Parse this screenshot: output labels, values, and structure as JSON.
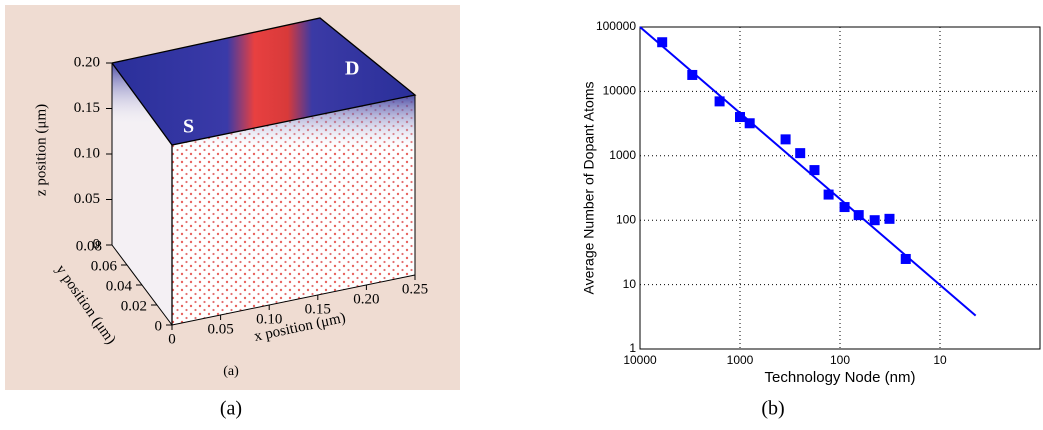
{
  "chart_data": [
    {
      "type": "scatter3d",
      "panel_label": "(a)",
      "caption": "(a)",
      "annotations": [
        "S",
        "D"
      ],
      "xlabel": "x position  (μm)",
      "ylabel": "y position  (μm)",
      "zlabel": "z position  (μm)",
      "xlim": [
        0,
        0.25
      ],
      "xticks": [
        0,
        0.05,
        {
          "value": 0.1,
          "label": "0.10"
        },
        0.15,
        {
          "value": 0.2,
          "label": "0.20"
        },
        0.25
      ],
      "ylim": [
        0,
        0.08
      ],
      "yticks": [
        0,
        0.02,
        0.04,
        0.06,
        0.08
      ],
      "zlim": [
        0,
        0.2
      ],
      "zticks": [
        0,
        0.05,
        {
          "value": 0.1,
          "label": "0.10"
        },
        0.15,
        {
          "value": 0.2,
          "label": "0.20"
        }
      ]
    },
    {
      "type": "scatter",
      "caption": "(b)",
      "xlabel": "Technology Node (nm)",
      "ylabel": "Average Number of Dopant Atoms",
      "xscale": "log",
      "yscale": "log",
      "grid": true,
      "xlim": [
        10000,
        1
      ],
      "xticks": [
        10000,
        1000,
        100,
        10
      ],
      "ylim": [
        1,
        100000
      ],
      "yticks": [
        1,
        10,
        100,
        1000,
        10000,
        100000
      ],
      "series": [
        {
          "color": "#0000ff",
          "marker": "square",
          "x": [
            6000,
            3000,
            1600,
            1000,
            800,
            350,
            250,
            180,
            130,
            90,
            65,
            45,
            32,
            22
          ],
          "values": [
            58000,
            18000,
            7000,
            4000,
            3200,
            1800,
            1100,
            600,
            250,
            160,
            120,
            100,
            105,
            25
          ]
        },
        {
          "color": "#0000ff",
          "marker": "line",
          "x": [
            10000,
            4.4
          ],
          "values": [
            100000,
            3.3
          ]
        }
      ]
    }
  ]
}
